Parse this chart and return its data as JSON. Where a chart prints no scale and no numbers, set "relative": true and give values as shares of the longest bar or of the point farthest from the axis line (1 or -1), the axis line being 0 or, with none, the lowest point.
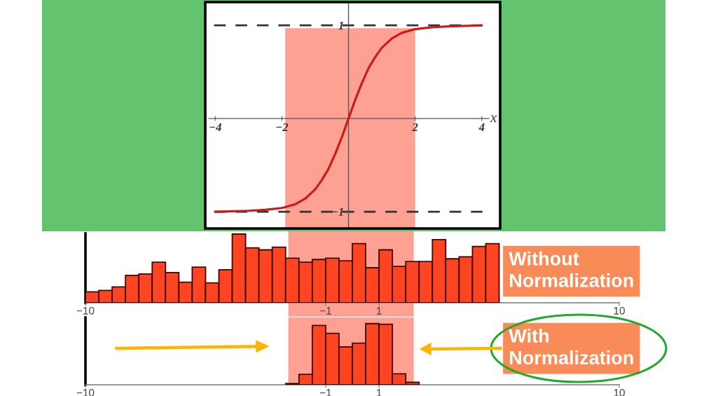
{
  "chart_data": [
    {
      "type": "line",
      "xlabel": "x",
      "xlim": [
        -4.3,
        4.55
      ],
      "ylim": [
        -1.18,
        1.25
      ],
      "xticks": [
        {
          "value": -4,
          "label": "−4"
        },
        {
          "value": -2,
          "label": "−2"
        },
        2,
        4
      ],
      "yticks": [
        {
          "value": -1,
          "label": "−1"
        },
        1
      ],
      "series": [
        {
          "color": "#cc1a1a",
          "x": [
            -4.0,
            -3.0,
            -2.5,
            -2.0,
            -1.6,
            -1.3,
            -1.0,
            -0.8,
            -0.6,
            -0.4,
            -0.2,
            0,
            0.2,
            0.4,
            0.6,
            0.8,
            1.0,
            1.3,
            1.6,
            2.0,
            2.5,
            3.0,
            4.0
          ],
          "values": [
            -1.0,
            -0.99,
            -0.98,
            -0.96,
            -0.92,
            -0.86,
            -0.76,
            -0.66,
            -0.54,
            -0.38,
            -0.2,
            0,
            0.2,
            0.38,
            0.54,
            0.66,
            0.76,
            0.86,
            0.92,
            0.96,
            0.98,
            0.99,
            1.0
          ]
        }
      ],
      "ref_lines": [
        {
          "axis": "y",
          "value": 1,
          "color": "#333333",
          "line_style": "dashed"
        },
        {
          "axis": "y",
          "value": -1,
          "color": "#333333",
          "line_style": "dashed"
        }
      ],
      "bands": [
        {
          "axis": "x",
          "from": -1.9,
          "to": 2.0,
          "color": "#fea092"
        }
      ]
    },
    {
      "type": "bar",
      "relative": true,
      "color": "#ff4422",
      "x": [
        -9.75,
        -9.25,
        -8.75,
        -8.25,
        -7.75,
        -7.25,
        -6.75,
        -6.25,
        -5.75,
        -5.25,
        -4.75,
        -4.25,
        -3.75,
        -3.25,
        -2.75,
        -2.25,
        -1.75,
        -1.25,
        -0.75,
        -0.25,
        0.25,
        0.75,
        1.25,
        1.75,
        2.25,
        2.75,
        3.25,
        3.75,
        4.25,
        4.75,
        5.25
      ],
      "values": [
        0.16,
        0.18,
        0.23,
        0.4,
        0.42,
        0.59,
        0.44,
        0.3,
        0.52,
        0.29,
        0.48,
        1.0,
        0.8,
        0.77,
        0.81,
        0.65,
        0.59,
        0.63,
        0.65,
        0.61,
        0.86,
        0.51,
        0.77,
        0.53,
        0.6,
        0.6,
        0.92,
        0.64,
        0.67,
        0.82,
        0.86
      ],
      "xlim": [
        -10,
        10
      ],
      "xticks": [
        {
          "value": -10,
          "label": "−10"
        },
        {
          "value": -1,
          "label": "−1"
        },
        1,
        10
      ],
      "bands": [
        {
          "axis": "x",
          "from": -2.4,
          "to": 2.3,
          "color": "#fea092"
        }
      ],
      "annotations": [
        "Without\nNormalization"
      ]
    },
    {
      "type": "bar",
      "relative": true,
      "color": "#ff4422",
      "x": [
        -2.25,
        -1.75,
        -1.25,
        -0.75,
        -0.25,
        0.25,
        0.75,
        1.25,
        1.75,
        2.25
      ],
      "values": [
        0.02,
        0.17,
        0.97,
        0.84,
        0.62,
        0.68,
        1.0,
        0.99,
        0.18,
        0.04
      ],
      "xlim": [
        -10,
        10
      ],
      "xticks": [
        {
          "value": -10,
          "label": "−10"
        },
        {
          "value": -1,
          "label": "−1"
        },
        1,
        10
      ],
      "bands": [
        {
          "axis": "x",
          "from": -2.4,
          "to": 2.3,
          "color": "#fea092"
        }
      ],
      "annotations": [
        "With\nNormalization"
      ]
    }
  ]
}
